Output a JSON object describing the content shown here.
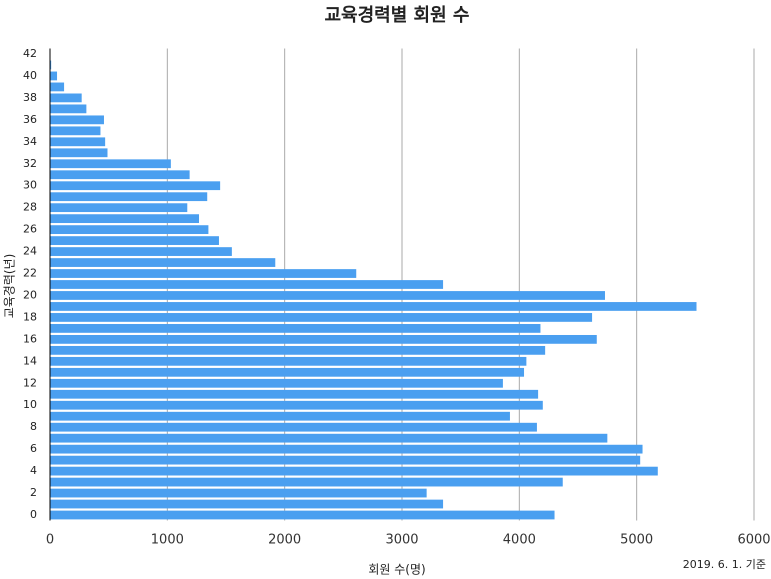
{
  "chart_data": {
    "type": "barh",
    "title": "교육경력별 회원 수",
    "x_label": "회원 수(명)",
    "y_label": "교육경력(년)",
    "note": "2019. 6. 1. 기준",
    "categories": [
      0,
      null,
      2,
      null,
      4,
      null,
      6,
      null,
      8,
      null,
      10,
      null,
      12,
      null,
      14,
      null,
      16,
      null,
      18,
      null,
      20,
      null,
      22,
      null,
      24,
      null,
      26,
      null,
      28,
      null,
      30,
      null,
      32,
      null,
      34,
      null,
      36,
      null,
      38,
      null,
      40,
      null,
      42
    ],
    "values": [
      4300,
      3350,
      3210,
      4370,
      5180,
      5030,
      5050,
      4750,
      4150,
      3920,
      4200,
      4160,
      3860,
      4040,
      4060,
      4220,
      4660,
      4180,
      4620,
      5510,
      4730,
      3350,
      2610,
      1920,
      1550,
      1440,
      1350,
      1270,
      1170,
      1340,
      1450,
      1190,
      1030,
      490,
      470,
      430,
      460,
      310,
      270,
      120,
      60,
      10,
      0
    ],
    "color": "#4a9ff0",
    "xlim": [
      0,
      6000
    ],
    "xticks": [
      0,
      1000,
      2000,
      3000,
      4000,
      5000,
      6000
    ],
    "grid": true
  }
}
